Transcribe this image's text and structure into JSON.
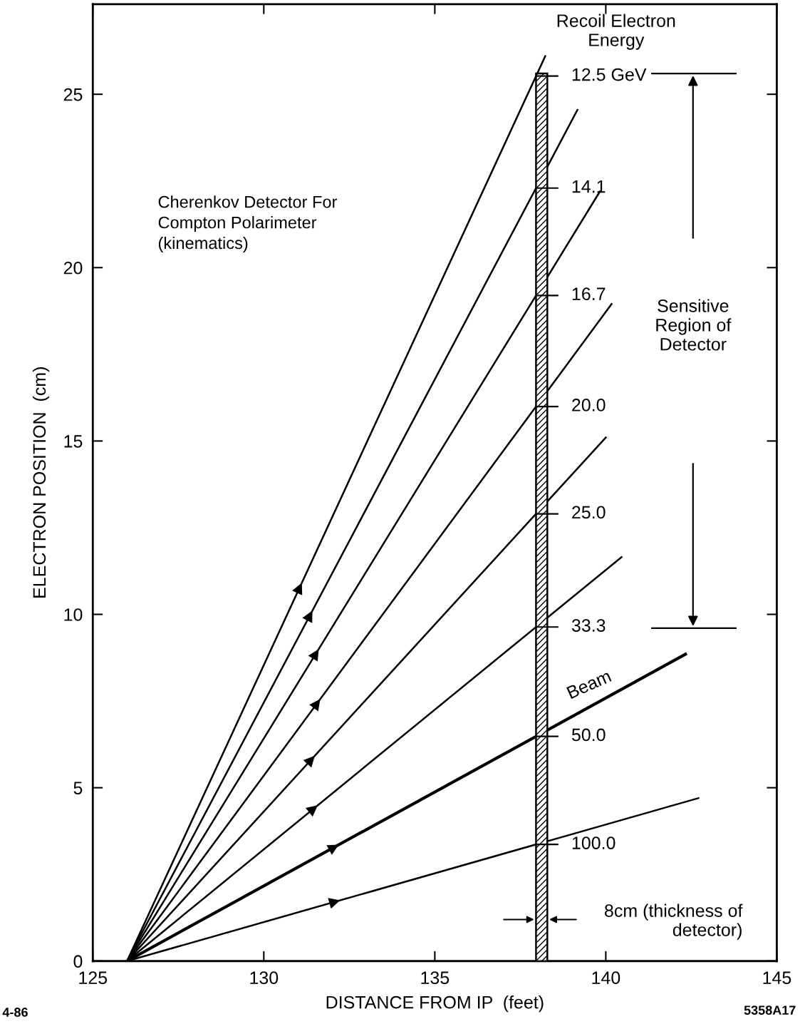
{
  "chart_data": {
    "type": "line",
    "title": "Cherenkov Detector For\nCompton Polarimeter\n(kinematics)",
    "xlabel": "DISTANCE FROM IP  (feet)",
    "ylabel": "ELECTRON POSITION  (cm)",
    "series": [
      {
        "name": "12.5 GeV",
        "color": "#000000",
        "x": [
          126.0,
          138.23
        ],
        "values": [
          0,
          26.1
        ]
      },
      {
        "name": "14.1",
        "color": "#000000",
        "x": [
          126.0,
          139.17
        ],
        "values": [
          0,
          24.55
        ]
      },
      {
        "name": "16.7",
        "color": "#000000",
        "x": [
          126.0,
          139.83
        ],
        "values": [
          0,
          22.2
        ]
      },
      {
        "name": "20.0",
        "color": "#000000",
        "x": [
          126.0,
          140.17
        ],
        "values": [
          0,
          18.95
        ]
      },
      {
        "name": "25.0",
        "color": "#000000",
        "x": [
          126.0,
          140.0
        ],
        "values": [
          0,
          15.1
        ]
      },
      {
        "name": "33.3",
        "color": "#000000",
        "x": [
          126.0,
          140.46
        ],
        "values": [
          0,
          11.65
        ]
      },
      {
        "name": "50.0",
        "color": "#000000",
        "x": [
          126.0,
          142.33
        ],
        "values": [
          0,
          8.85
        ]
      },
      {
        "name": "100.0",
        "color": "#000000",
        "x": [
          126.0,
          142.71
        ],
        "values": [
          0,
          4.7
        ]
      }
    ],
    "xlim": [
      125,
      145
    ],
    "xticks": [
      125,
      130,
      135,
      140,
      145
    ],
    "ylim": [
      0,
      27.6
    ],
    "yticks": [
      0,
      5,
      10,
      15,
      20,
      25
    ],
    "bands": [
      {
        "axis": "x",
        "from": 137.96,
        "to": 138.29
      }
    ],
    "ref_lines": [
      {
        "axis": "y",
        "value": 25.6
      },
      {
        "axis": "y",
        "value": 9.6
      }
    ],
    "annotations": [
      "Recoil Electron\nEnergy",
      "Beam",
      "8cm (thickness of\ndetector)",
      "Sensitive\nRegion of\nDetector",
      "4-86",
      "5358A17"
    ],
    "legend": "right",
    "grid": false,
    "line_style": "solid",
    "marker": "none"
  }
}
